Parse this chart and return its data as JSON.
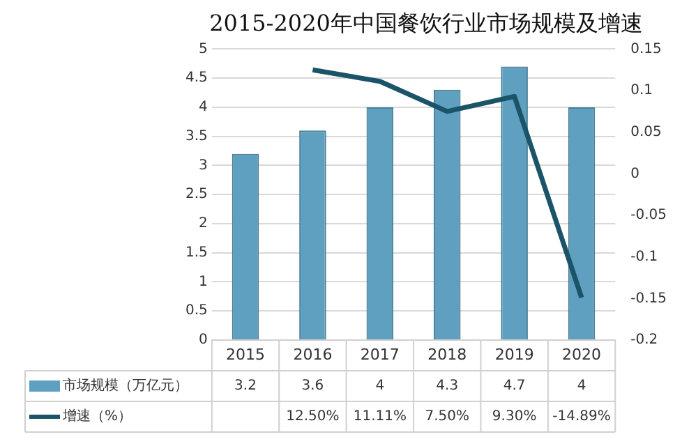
{
  "chart_data": {
    "type": "bar",
    "title": "2015-2020年中国餐饮行业市场规模及增速",
    "categories": [
      "2015",
      "2016",
      "2017",
      "2018",
      "2019",
      "2020"
    ],
    "series": [
      {
        "name": "市场规模（万亿元）",
        "color": "#5f9fbf",
        "values": [
          3.2,
          3.6,
          4,
          4.3,
          4.7,
          4
        ],
        "value_labels": [
          "3.2",
          "3.6",
          "4",
          "4.3",
          "4.7",
          "4"
        ]
      },
      {
        "name": "增速（%）",
        "type": "line",
        "axis": "y2",
        "color": "#1b5468",
        "values": [
          null,
          0.125,
          0.1111,
          0.075,
          0.093,
          -0.1489
        ],
        "value_labels": [
          null,
          "12.50%",
          "11.11%",
          "7.50%",
          "9.30%",
          "-14.89%"
        ]
      }
    ],
    "ylim": [
      0,
      5
    ],
    "yticks": [
      0,
      0.5,
      1,
      1.5,
      2,
      2.5,
      3,
      3.5,
      4,
      4.5,
      5
    ],
    "y2lim": [
      -0.2,
      0.15
    ],
    "y2ticks": [
      -0.2,
      -0.15,
      -0.1,
      -0.05,
      0,
      0.05,
      0.1,
      0.15
    ],
    "grid": "y",
    "legend": "bottom",
    "marker": "none",
    "line_style": "solid"
  }
}
